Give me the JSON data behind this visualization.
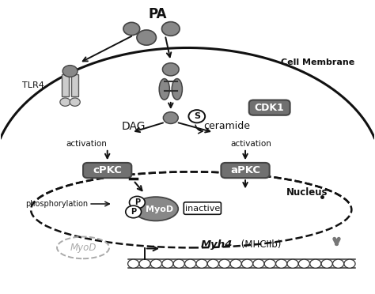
{
  "figsize": [
    4.74,
    3.72
  ],
  "dpi": 100,
  "bg_color": "#ffffff",
  "gray_fill": "#888888",
  "light_gray": "#cccccc",
  "dark_box_fill": "#707070",
  "white": "#ffffff",
  "black": "#111111",
  "mgray": "#aaaaaa",
  "xlim": [
    0,
    10
  ],
  "ylim": [
    0,
    10
  ],
  "pa_label": "PA",
  "cell_membrane_label": "Cell Membrane",
  "nucleus_label": "Nucleus",
  "tlr4_label": "TLR4",
  "cdk1_label": "CDK1",
  "dag_label": "DAG",
  "ceramide_label": "ceramide",
  "activation_label": "activation",
  "cpkc_label": "cPKC",
  "apkc_label": "aPKC",
  "phosphorylation_label": "phosphorylation",
  "inactive_label": "inactive",
  "myod_label": "MyoD",
  "gene_label": "Myh4",
  "gene_label2": " (MHCIIb)",
  "s_label": "S"
}
